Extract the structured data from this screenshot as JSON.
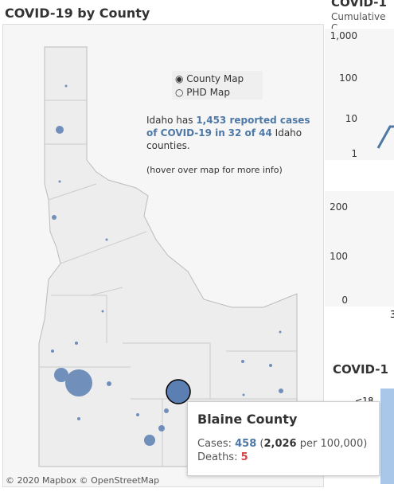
{
  "header": {
    "title": "COVID-19 by County"
  },
  "map": {
    "options": [
      "County Map",
      "PHD Map"
    ],
    "summary": {
      "prefix": "Idaho has",
      "cases": "1,453 reported cases",
      "mid": "of COVID-19 in",
      "counties": "32 of 44",
      "suffix": "Idaho counties."
    },
    "hint": "(hover over map for more info)",
    "attribution": "© 2020 Mapbox © OpenStreetMap"
  },
  "tooltip": {
    "title": "Blaine County",
    "cases_label": "Cases:",
    "cases": "458",
    "open": "(",
    "rate": "2,026",
    "rate_suffix": "per 100,000)",
    "deaths_label": "Deaths:",
    "deaths": "5"
  },
  "panels": [
    {
      "title": "COVID-1",
      "subtitle": "Cumulative C",
      "ticks": [
        "1,000",
        "100",
        "10",
        "1"
      ]
    },
    {
      "ticks": [
        "200",
        "100",
        "0"
      ],
      "xlabel": "3"
    },
    {
      "title": "COVID-1",
      "label": "<18"
    }
  ]
}
